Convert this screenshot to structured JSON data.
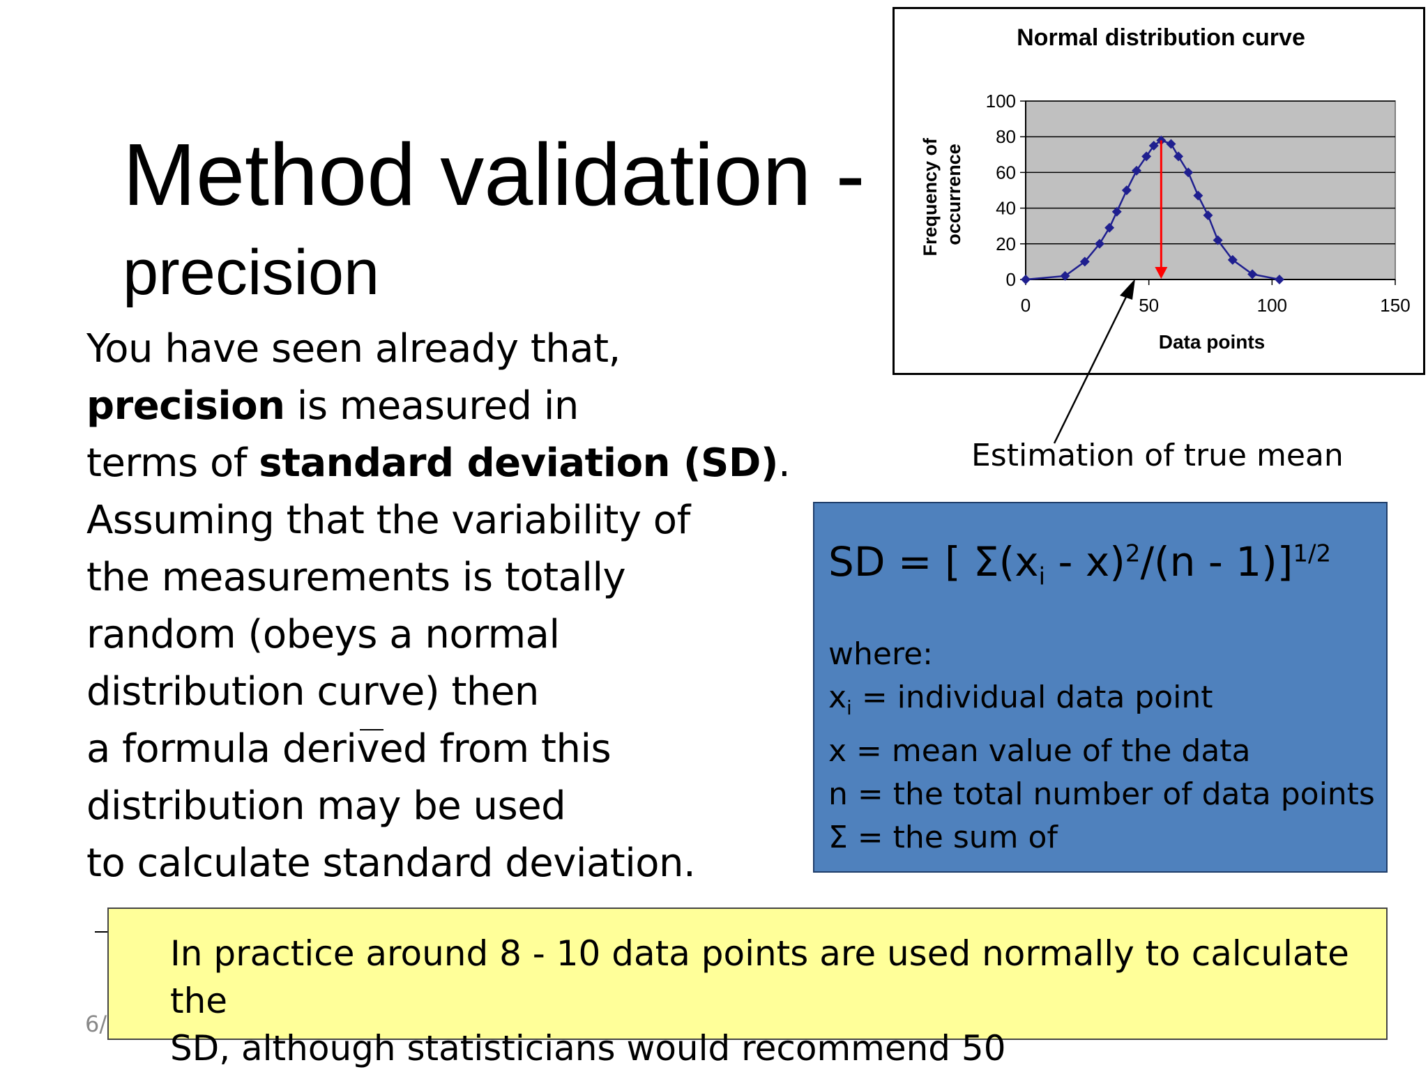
{
  "slide": {
    "title_main": "Method validation -",
    "title_sub": "precision",
    "paragraph": [
      {
        "parts": [
          {
            "t": "You have seen already that,",
            "b": false
          }
        ]
      },
      {
        "parts": [
          {
            "t": "precision",
            "b": true
          },
          {
            "t": " is measured in",
            "b": false
          }
        ]
      },
      {
        "parts": [
          {
            "t": "terms of ",
            "b": false
          },
          {
            "t": "standard deviation (SD)",
            "b": true
          },
          {
            "t": ".",
            "b": false
          }
        ]
      },
      {
        "parts": [
          {
            "t": "Assuming that the variability of",
            "b": false
          }
        ]
      },
      {
        "parts": [
          {
            "t": "the measurements is totally",
            "b": false
          }
        ]
      },
      {
        "parts": [
          {
            "t": "random (obeys a normal",
            "b": false
          }
        ]
      },
      {
        "parts": [
          {
            "t": "distribution curve) then",
            "b": false
          }
        ]
      },
      {
        "parts": [
          {
            "t": "a formula derived from this",
            "b": false
          }
        ]
      },
      {
        "parts": [
          {
            "t": "distribution may be used",
            "b": false
          }
        ]
      },
      {
        "parts": [
          {
            "t": "to calculate standard deviation.",
            "b": false
          }
        ]
      }
    ],
    "slide_number": "6/"
  },
  "chart_data": {
    "type": "line",
    "title": "Normal distribution curve",
    "xlabel": "Data points",
    "ylabel": "Frequency of occurrence",
    "xlim": [
      0,
      150
    ],
    "ylim": [
      0,
      100
    ],
    "xticks": [
      0,
      50,
      100,
      150
    ],
    "yticks": [
      0,
      20,
      40,
      60,
      80,
      100
    ],
    "grid": true,
    "plot_background": "#c0c0c0",
    "series": [
      {
        "color": "#1f1f8f",
        "marker": "diamond",
        "x": [
          0,
          16,
          24,
          30,
          34,
          37,
          41,
          45,
          49,
          52,
          55,
          59,
          62,
          66,
          70,
          74,
          78,
          84,
          92,
          103
        ],
        "y": [
          0,
          2,
          10,
          20,
          29,
          38,
          50,
          61,
          69,
          75,
          78,
          76,
          69,
          60,
          47,
          36,
          22,
          11,
          3,
          0
        ]
      }
    ],
    "mean_marker": {
      "x": 55,
      "y": 78,
      "color": "#ff0000"
    }
  },
  "annotation": {
    "text": "Estimation of true mean"
  },
  "formula": {
    "sd_prefix": "SD = [ Σ(x",
    "sd_sub": "i",
    "sd_mid": " - x)",
    "sd_sup1": "2",
    "sd_rest": "/(n - 1)]",
    "sd_sup2": "1/2",
    "where_label": "where:",
    "xi_main": "x",
    "xi_sub": "i",
    "xi_def": " = individual data point",
    "x_def": "x  = mean value of the data",
    "n_def": "n  = the total number of data points",
    "sigma_def": "Σ = the sum of",
    "box_color": "#4f81bd"
  },
  "note": {
    "line1": "In practice around 8 - 10 data points are used normally to calculate the",
    "line2": "SD, although statisticians would recommend 50",
    "box_color": "#ffff99"
  }
}
